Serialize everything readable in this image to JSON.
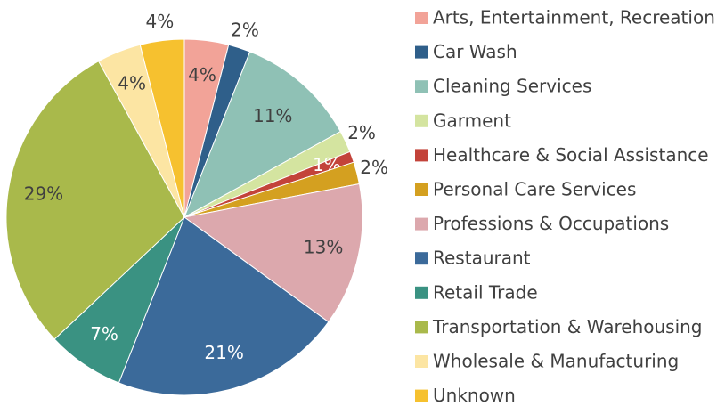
{
  "chart_data": {
    "type": "pie",
    "categories": [
      "Arts, Entertainment, Recreation",
      "Car Wash",
      "Cleaning Services",
      "Garment",
      "Healthcare & Social Assistance",
      "Personal Care Services",
      "Professions & Occupations",
      "Restaurant",
      "Retail Trade",
      "Transportation & Warehousing",
      "Wholesale & Manufacturing",
      "Unknown"
    ],
    "values": [
      4,
      2,
      11,
      2,
      1,
      2,
      13,
      21,
      7,
      29,
      4,
      4
    ],
    "value_labels": [
      "4%",
      "2%",
      "11%",
      "2%",
      "1%",
      "2%",
      "13%",
      "21%",
      "7%",
      "29%",
      "4%",
      "4%"
    ],
    "colors": [
      "#f2a398",
      "#2f5f8a",
      "#8fc1b5",
      "#d4e4a0",
      "#c3433a",
      "#d4a020",
      "#dca8ad",
      "#3b6a9a",
      "#3a9282",
      "#a9b94b",
      "#fce5a3",
      "#f6c12f"
    ],
    "legend": "right"
  }
}
